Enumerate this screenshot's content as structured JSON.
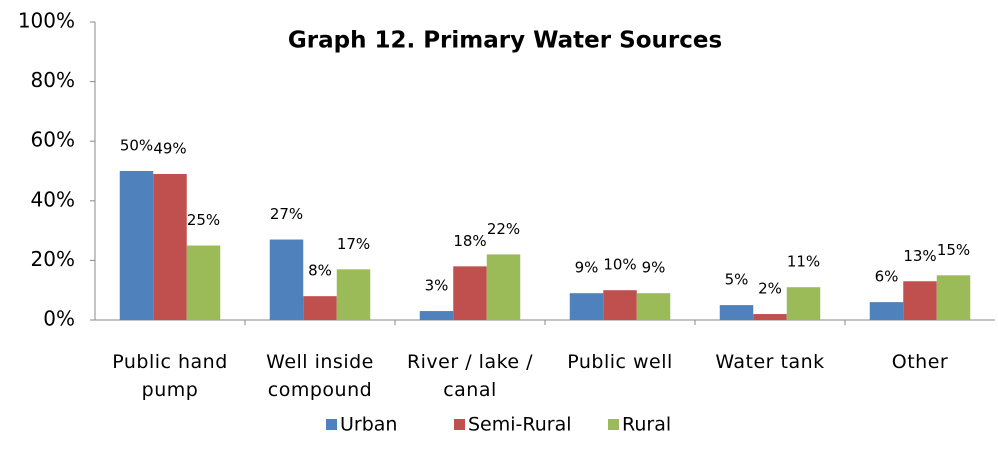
{
  "chart_data": {
    "type": "bar",
    "title": "Graph 12. Primary Water Sources",
    "categories": [
      "Public hand pump",
      "Well inside compound",
      "River / lake / canal",
      "Public well",
      "Water tank",
      "Other"
    ],
    "series": [
      {
        "name": "Urban",
        "color": "#4f81bd",
        "values": [
          50,
          27,
          3,
          9,
          5,
          6
        ],
        "value_labels": [
          "50%",
          "27%",
          "3%",
          "9%",
          "5%",
          "6%"
        ]
      },
      {
        "name": "Semi-Rural",
        "color": "#c0504d",
        "values": [
          49,
          8,
          18,
          10,
          2,
          13
        ],
        "value_labels": [
          "49%",
          "8%",
          "18%",
          "10%",
          "2%",
          "13%"
        ]
      },
      {
        "name": "Rural",
        "color": "#9bbb59",
        "values": [
          25,
          17,
          22,
          9,
          11,
          15
        ],
        "value_labels": [
          "25%",
          "17%",
          "22%",
          "9%",
          "11%",
          "15%"
        ]
      }
    ],
    "ylim": [
      0,
      100
    ],
    "yticks": [
      {
        "value": 0,
        "label": "0%"
      },
      {
        "value": 20,
        "label": "20%"
      },
      {
        "value": 40,
        "label": "40%"
      },
      {
        "value": 60,
        "label": "60%"
      },
      {
        "value": 80,
        "label": "80%"
      },
      {
        "value": 100,
        "label": "100%"
      }
    ],
    "legend": "bottom",
    "grid": false
  }
}
